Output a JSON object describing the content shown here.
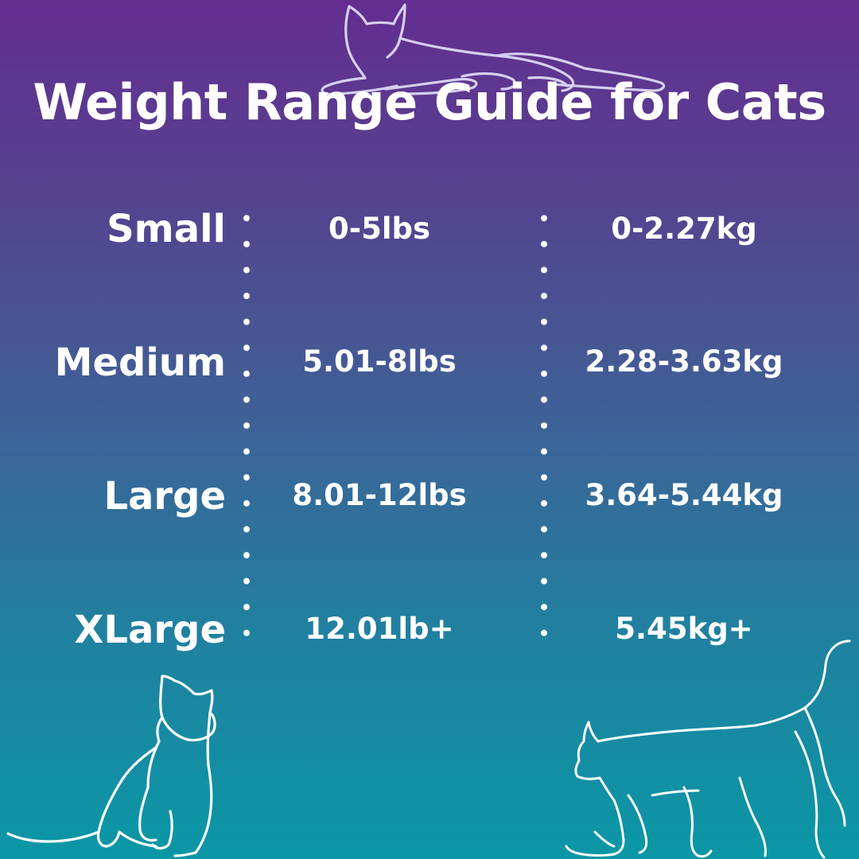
{
  "title": "Weight Range Guide for Cats",
  "rows": [
    {
      "size": "Small",
      "lbs": "0-5lbs",
      "kg": "0-2.27kg"
    },
    {
      "size": "Medium",
      "lbs": "5.01-8lbs",
      "kg": "2.28-3.63kg"
    },
    {
      "size": "Large",
      "lbs": "8.01-12lbs",
      "kg": "3.64-5.44kg"
    },
    {
      "size": "XLarge",
      "lbs": "12.01lb+",
      "kg": "5.45kg+"
    }
  ],
  "colors": {
    "gradient_top": "#642d91",
    "gradient_bottom": "#0a97a6",
    "text": "#ffffff",
    "top_cat_outline": "#d6d0ee"
  },
  "icons": [
    "lying-cat-outline-icon",
    "sitting-cat-outline-icon",
    "walking-cat-outline-icon"
  ]
}
